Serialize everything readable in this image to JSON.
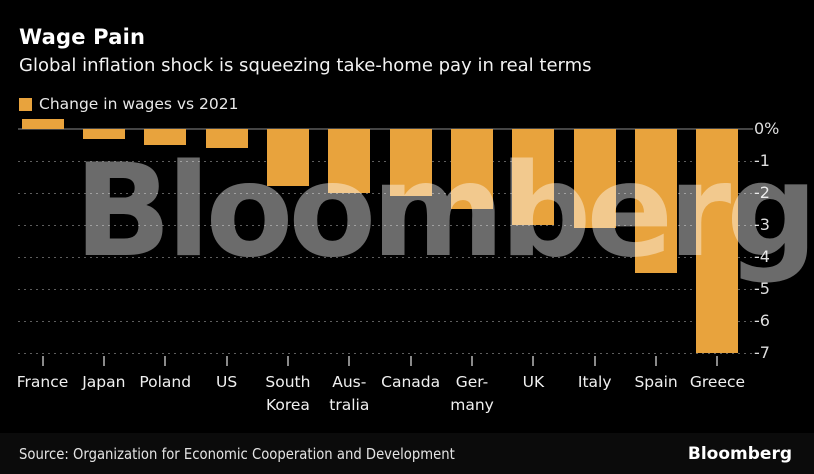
{
  "header": {
    "title": "Wage Pain",
    "subtitle": "Global inflation shock is squeezing take-home pay in real terms"
  },
  "legend": {
    "label": "Change in wages vs 2021"
  },
  "watermark": "Bloomberg",
  "footer": {
    "source": "Source: Organization for Economic Cooperation and Development",
    "logo": "Bloomberg"
  },
  "colors": {
    "background": "#000000",
    "bar": "#E8A33D",
    "grid_dots": "#5d5d5d",
    "zero_line": "#454545",
    "text": "#ffffff"
  },
  "chart_data": {
    "type": "bar",
    "title": "Wage Pain",
    "subtitle": "Global inflation shock is squeezing take-home pay in real terms",
    "legend": "Change in wages vs 2021",
    "categories": [
      "France",
      "Japan",
      "Poland",
      "US",
      "South\nKorea",
      "Aus-\ntralia",
      "Canada",
      "Ger-\nmany",
      "UK",
      "Italy",
      "Spain",
      "Greece"
    ],
    "values": [
      0.3,
      -0.3,
      -0.5,
      -0.6,
      -1.8,
      -2.0,
      -2.1,
      -2.5,
      -3.0,
      -3.1,
      -4.5,
      -7.0
    ],
    "unit": "%",
    "ylabel": "",
    "xlabel": "",
    "ylim": [
      -7,
      0.5
    ],
    "yticks": [
      0,
      -1,
      -2,
      -3,
      -4,
      -5,
      -6,
      -7
    ],
    "ytick_labels": [
      "0%",
      "-1",
      "-2",
      "-3",
      "-4",
      "-5",
      "-6",
      "-7"
    ],
    "grid": "horizontal dotted",
    "axis_side": "right",
    "legend_position": "top-left"
  }
}
